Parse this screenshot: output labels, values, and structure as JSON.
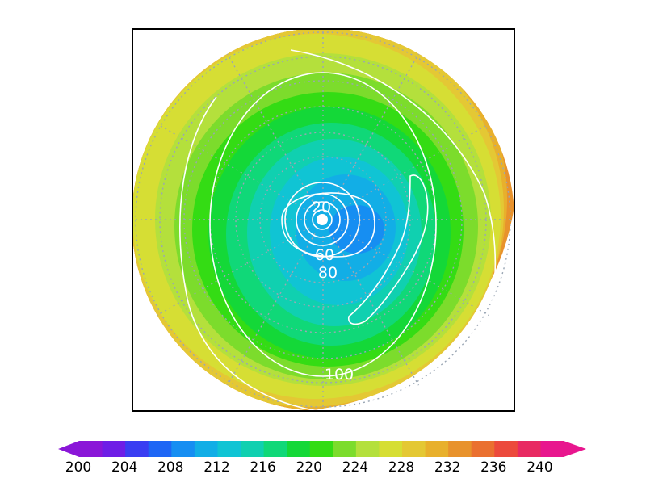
{
  "chart_data": {
    "type": "heatmap",
    "title": "",
    "projection": "polar-stereographic",
    "grid": true,
    "legend_placement": "bottom",
    "filled_contours": {
      "levels": [
        200,
        202,
        204,
        206,
        208,
        210,
        212,
        214,
        216,
        218,
        220,
        222,
        224,
        226,
        228,
        230,
        232,
        234,
        236,
        238,
        240
      ],
      "colors": [
        "#8a16d8",
        "#6e1ee6",
        "#3a3ef2",
        "#1e66f5",
        "#168ef2",
        "#12aee6",
        "#10c4d4",
        "#10d0b0",
        "#10d878",
        "#14d838",
        "#34dc14",
        "#7cdc2c",
        "#b4e03c",
        "#d6de34",
        "#e4c834",
        "#e8b02c",
        "#e8922c",
        "#ea7030",
        "#ec4a3c",
        "#e82a62",
        "#e8168e"
      ],
      "extend": "both",
      "tick_labels": [
        "200",
        "204",
        "208",
        "212",
        "216",
        "220",
        "224",
        "228",
        "232",
        "236",
        "240"
      ]
    },
    "line_contours": {
      "color": "#ffffff",
      "levels": [
        20,
        40,
        60,
        80,
        100
      ],
      "labels": [
        "20",
        "60",
        "80",
        "100"
      ]
    }
  }
}
